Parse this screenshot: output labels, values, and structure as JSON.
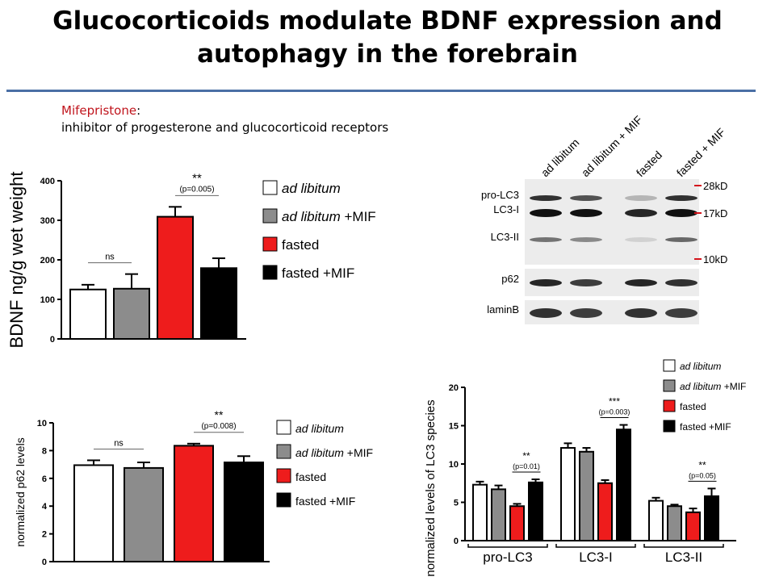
{
  "slide": {
    "title_line1": "Glucocorticoids modulate BDNF expression and",
    "title_line2": "autophagy in the forebrain",
    "note_drug": "Mifepristone",
    "note_colon": ":",
    "note_desc": "inhibitor of progesterone  and glucocorticoid receptors"
  },
  "colors": {
    "ad_libitum": "#ffffff",
    "ad_libitum_mif": "#8c8c8c",
    "fasted": "#ee1c1c",
    "fasted_mif": "#000000",
    "title_rule": "#4a6fa5",
    "marker_red": "#d4141c"
  },
  "legend_items": [
    {
      "pre": "ad libitum",
      "post": "",
      "italic": true,
      "color": "#ffffff"
    },
    {
      "pre": "ad libitum",
      "post": " +MIF",
      "italic": true,
      "color": "#8c8c8c"
    },
    {
      "pre": "",
      "post": "fasted",
      "italic": false,
      "color": "#ee1c1c"
    },
    {
      "pre": "",
      "post": "fasted +MIF",
      "italic": false,
      "color": "#000000"
    }
  ],
  "blot": {
    "lane_labels": [
      "ad libitum",
      "ad libitum + MIF",
      "fasted",
      "fasted + MIF"
    ],
    "band_labels": [
      "pro-LC3",
      "LC3-I",
      "LC3-II",
      "p62",
      "laminB"
    ],
    "markers": [
      "28kD",
      "17kD",
      "10kD"
    ]
  },
  "chart_data": [
    {
      "type": "bar",
      "categories": [
        "ad libitum",
        "ad libitum +MIF",
        "fasted",
        "fasted +MIF"
      ],
      "values": [
        125,
        127,
        309,
        179
      ],
      "errors": [
        12,
        37,
        25,
        25
      ],
      "ylabel": "BDNF  ng/g wet weight",
      "ylim": [
        0,
        400
      ],
      "yticks": [
        "0",
        "100",
        "200",
        "300",
        "400"
      ],
      "annotations": [
        {
          "text": "ns",
          "between": [
            0,
            1
          ]
        },
        {
          "text": "**",
          "sub": "(p=0.005)",
          "between": [
            2,
            3
          ]
        }
      ]
    },
    {
      "type": "bar",
      "categories": [
        "ad libitum",
        "ad libitum +MIF",
        "fasted",
        "fasted +MIF"
      ],
      "values": [
        6.95,
        6.75,
        8.35,
        7.15
      ],
      "errors": [
        0.35,
        0.4,
        0.15,
        0.45
      ],
      "ylabel": "normalized p62 levels",
      "ylim": [
        0,
        10
      ],
      "yticks": [
        "0",
        "2",
        "4",
        "6",
        "8",
        "10"
      ],
      "annotations": [
        {
          "text": "ns",
          "between": [
            0,
            1
          ]
        },
        {
          "text": "**",
          "sub": "(p=0.008)",
          "between": [
            2,
            3
          ]
        }
      ]
    },
    {
      "type": "bar",
      "categories": [
        "pro-LC3",
        "LC3-I",
        "LC3-II"
      ],
      "ylabel": "normalized levels of LC3 species",
      "ylim": [
        0,
        20
      ],
      "yticks": [
        "0",
        "5",
        "10",
        "15",
        "20"
      ],
      "series": [
        {
          "name": "ad libitum",
          "values": [
            7.3,
            12.1,
            5.2
          ],
          "errors": [
            0.4,
            0.6,
            0.4
          ]
        },
        {
          "name": "ad libitum +MIF",
          "values": [
            6.7,
            11.6,
            4.5
          ],
          "errors": [
            0.5,
            0.5,
            0.2
          ]
        },
        {
          "name": "fasted",
          "values": [
            4.5,
            7.5,
            3.7
          ],
          "errors": [
            0.3,
            0.4,
            0.5
          ]
        },
        {
          "name": "fasted +MIF",
          "values": [
            7.6,
            14.5,
            5.8
          ],
          "errors": [
            0.4,
            0.6,
            1.0
          ]
        }
      ],
      "annotations": [
        {
          "text": "**",
          "sub": "(p=0.01)",
          "group": 0
        },
        {
          "text": "***",
          "sub": "(p=0.003)",
          "group": 1
        },
        {
          "text": "**",
          "sub": "(p=0.05)",
          "group": 2
        }
      ]
    }
  ]
}
